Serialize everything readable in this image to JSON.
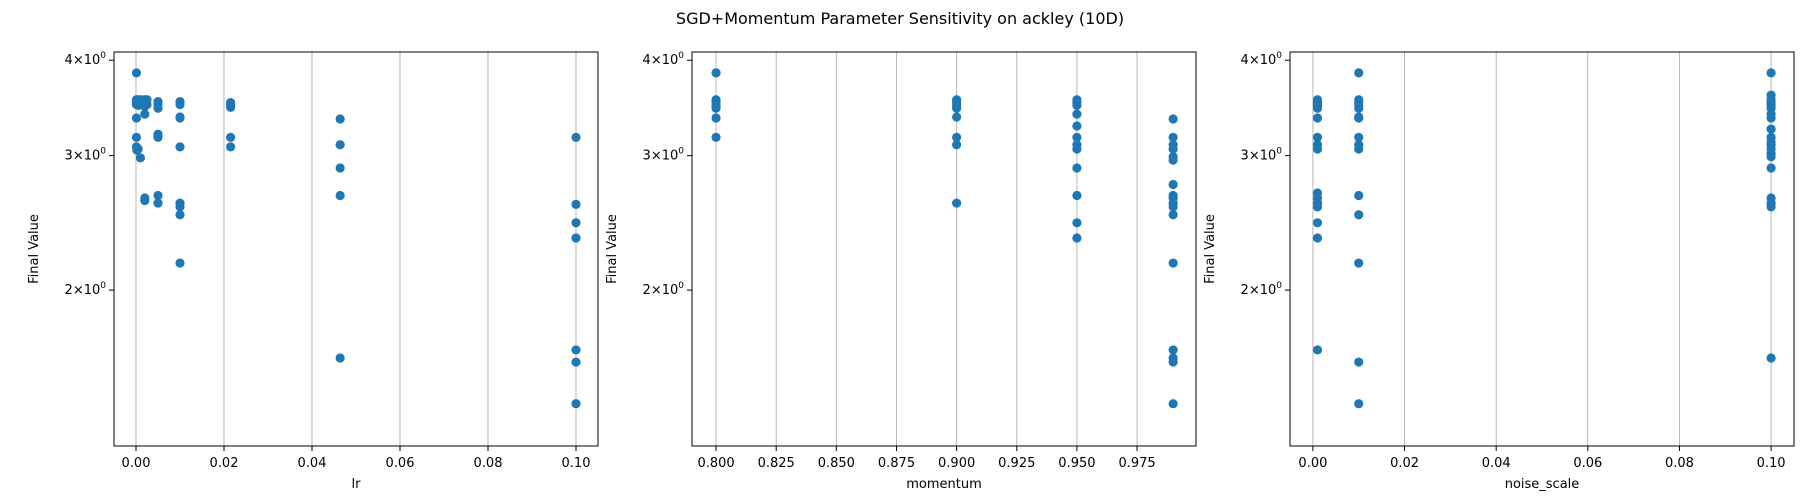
{
  "figure": {
    "title": "SGD+Momentum Parameter Sensitivity on ackley (10D)"
  },
  "chart_data": [
    {
      "type": "scatter",
      "title": "",
      "xlabel": "lr",
      "ylabel": "Final Value",
      "xlim": [
        -0.005,
        0.105
      ],
      "ylim": [
        1.25,
        4.1
      ],
      "yscale": "log",
      "grid": "x-only",
      "marker_color": "#1f77b4",
      "x_ticks": [
        {
          "value": 0.0,
          "label": "0.00"
        },
        {
          "value": 0.02,
          "label": "0.02"
        },
        {
          "value": 0.04,
          "label": "0.04"
        },
        {
          "value": 0.06,
          "label": "0.06"
        },
        {
          "value": 0.08,
          "label": "0.08"
        },
        {
          "value": 0.1,
          "label": "0.10"
        }
      ],
      "y_ticks": [
        {
          "value": 2,
          "base": "2",
          "exp": "0"
        },
        {
          "value": 3,
          "base": "3",
          "exp": "0"
        },
        {
          "value": 4,
          "base": "4",
          "exp": "0"
        }
      ],
      "points": [
        {
          "x": 0.0001,
          "y": 3.85
        },
        {
          "x": 0.0001,
          "y": 3.55
        },
        {
          "x": 0.0001,
          "y": 3.53
        },
        {
          "x": 0.0001,
          "y": 3.5
        },
        {
          "x": 0.0001,
          "y": 3.36
        },
        {
          "x": 0.0001,
          "y": 3.17
        },
        {
          "x": 0.0001,
          "y": 3.08
        },
        {
          "x": 0.0002,
          "y": 3.05
        },
        {
          "x": 0.0005,
          "y": 3.55
        },
        {
          "x": 0.0005,
          "y": 3.49
        },
        {
          "x": 0.0005,
          "y": 3.06
        },
        {
          "x": 0.001,
          "y": 3.55
        },
        {
          "x": 0.001,
          "y": 3.5
        },
        {
          "x": 0.001,
          "y": 2.98
        },
        {
          "x": 0.002,
          "y": 3.55
        },
        {
          "x": 0.002,
          "y": 3.52
        },
        {
          "x": 0.002,
          "y": 3.48
        },
        {
          "x": 0.002,
          "y": 3.4
        },
        {
          "x": 0.002,
          "y": 2.64
        },
        {
          "x": 0.002,
          "y": 2.62
        },
        {
          "x": 0.0025,
          "y": 3.55
        },
        {
          "x": 0.0025,
          "y": 3.5
        },
        {
          "x": 0.005,
          "y": 3.53
        },
        {
          "x": 0.005,
          "y": 3.5
        },
        {
          "x": 0.005,
          "y": 3.46
        },
        {
          "x": 0.005,
          "y": 3.2
        },
        {
          "x": 0.005,
          "y": 3.17
        },
        {
          "x": 0.005,
          "y": 2.66
        },
        {
          "x": 0.005,
          "y": 2.6
        },
        {
          "x": 0.01,
          "y": 3.53
        },
        {
          "x": 0.01,
          "y": 3.5
        },
        {
          "x": 0.01,
          "y": 3.37
        },
        {
          "x": 0.01,
          "y": 3.36
        },
        {
          "x": 0.01,
          "y": 3.08
        },
        {
          "x": 0.01,
          "y": 2.6
        },
        {
          "x": 0.01,
          "y": 2.57
        },
        {
          "x": 0.01,
          "y": 2.51
        },
        {
          "x": 0.01,
          "y": 2.17
        },
        {
          "x": 0.0215,
          "y": 3.52
        },
        {
          "x": 0.0215,
          "y": 3.5
        },
        {
          "x": 0.0215,
          "y": 3.47
        },
        {
          "x": 0.0215,
          "y": 3.17
        },
        {
          "x": 0.0215,
          "y": 3.08
        },
        {
          "x": 0.0464,
          "y": 3.35
        },
        {
          "x": 0.0464,
          "y": 3.1
        },
        {
          "x": 0.0464,
          "y": 2.89
        },
        {
          "x": 0.0464,
          "y": 2.66
        },
        {
          "x": 0.0464,
          "y": 1.63
        },
        {
          "x": 0.1,
          "y": 3.17
        },
        {
          "x": 0.1,
          "y": 2.59
        },
        {
          "x": 0.1,
          "y": 2.45
        },
        {
          "x": 0.1,
          "y": 2.34
        },
        {
          "x": 0.1,
          "y": 1.67
        },
        {
          "x": 0.1,
          "y": 1.61
        },
        {
          "x": 0.1,
          "y": 1.42
        }
      ]
    },
    {
      "type": "scatter",
      "title": "",
      "xlabel": "momentum",
      "ylabel": "Final Value",
      "xlim": [
        0.79,
        0.9995
      ],
      "ylim": [
        1.25,
        4.1
      ],
      "yscale": "log",
      "grid": "x-only",
      "marker_color": "#1f77b4",
      "x_ticks": [
        {
          "value": 0.8,
          "label": "0.800"
        },
        {
          "value": 0.825,
          "label": "0.825"
        },
        {
          "value": 0.85,
          "label": "0.850"
        },
        {
          "value": 0.875,
          "label": "0.875"
        },
        {
          "value": 0.9,
          "label": "0.900"
        },
        {
          "value": 0.925,
          "label": "0.925"
        },
        {
          "value": 0.95,
          "label": "0.950"
        },
        {
          "value": 0.975,
          "label": "0.975"
        }
      ],
      "y_ticks": [
        {
          "value": 2,
          "base": "2",
          "exp": "0"
        },
        {
          "value": 3,
          "base": "3",
          "exp": "0"
        },
        {
          "value": 4,
          "base": "4",
          "exp": "0"
        }
      ],
      "points": [
        {
          "x": 0.8,
          "y": 3.85
        },
        {
          "x": 0.8,
          "y": 3.55
        },
        {
          "x": 0.8,
          "y": 3.53
        },
        {
          "x": 0.8,
          "y": 3.5
        },
        {
          "x": 0.8,
          "y": 3.48
        },
        {
          "x": 0.8,
          "y": 3.46
        },
        {
          "x": 0.8,
          "y": 3.36
        },
        {
          "x": 0.8,
          "y": 3.17
        },
        {
          "x": 0.9,
          "y": 3.55
        },
        {
          "x": 0.9,
          "y": 3.52
        },
        {
          "x": 0.9,
          "y": 3.49
        },
        {
          "x": 0.9,
          "y": 3.46
        },
        {
          "x": 0.9,
          "y": 3.37
        },
        {
          "x": 0.9,
          "y": 3.17
        },
        {
          "x": 0.9,
          "y": 3.1
        },
        {
          "x": 0.9,
          "y": 2.6
        },
        {
          "x": 0.95,
          "y": 3.55
        },
        {
          "x": 0.95,
          "y": 3.52
        },
        {
          "x": 0.95,
          "y": 3.49
        },
        {
          "x": 0.95,
          "y": 3.4
        },
        {
          "x": 0.95,
          "y": 3.28
        },
        {
          "x": 0.95,
          "y": 3.17
        },
        {
          "x": 0.95,
          "y": 3.1
        },
        {
          "x": 0.95,
          "y": 3.06
        },
        {
          "x": 0.95,
          "y": 2.89
        },
        {
          "x": 0.95,
          "y": 2.66
        },
        {
          "x": 0.95,
          "y": 2.45
        },
        {
          "x": 0.95,
          "y": 2.34
        },
        {
          "x": 0.99,
          "y": 3.35
        },
        {
          "x": 0.99,
          "y": 3.17
        },
        {
          "x": 0.99,
          "y": 3.1
        },
        {
          "x": 0.99,
          "y": 3.06
        },
        {
          "x": 0.99,
          "y": 2.99
        },
        {
          "x": 0.99,
          "y": 2.96
        },
        {
          "x": 0.99,
          "y": 2.75
        },
        {
          "x": 0.99,
          "y": 2.66
        },
        {
          "x": 0.99,
          "y": 2.64
        },
        {
          "x": 0.99,
          "y": 2.6
        },
        {
          "x": 0.99,
          "y": 2.57
        },
        {
          "x": 0.99,
          "y": 2.51
        },
        {
          "x": 0.99,
          "y": 2.17
        },
        {
          "x": 0.99,
          "y": 1.67
        },
        {
          "x": 0.99,
          "y": 1.63
        },
        {
          "x": 0.99,
          "y": 1.61
        },
        {
          "x": 0.99,
          "y": 1.42
        }
      ]
    },
    {
      "type": "scatter",
      "title": "",
      "xlabel": "noise_scale",
      "ylabel": "Final Value",
      "xlim": [
        -0.005,
        0.105
      ],
      "ylim": [
        1.25,
        4.1
      ],
      "yscale": "log",
      "grid": "x-only",
      "marker_color": "#1f77b4",
      "x_ticks": [
        {
          "value": 0.0,
          "label": "0.00"
        },
        {
          "value": 0.02,
          "label": "0.02"
        },
        {
          "value": 0.04,
          "label": "0.04"
        },
        {
          "value": 0.06,
          "label": "0.06"
        },
        {
          "value": 0.08,
          "label": "0.08"
        },
        {
          "value": 0.1,
          "label": "0.10"
        }
      ],
      "y_ticks": [
        {
          "value": 2,
          "base": "2",
          "exp": "0"
        },
        {
          "value": 3,
          "base": "3",
          "exp": "0"
        },
        {
          "value": 4,
          "base": "4",
          "exp": "0"
        }
      ],
      "points": [
        {
          "x": 0.001,
          "y": 3.55
        },
        {
          "x": 0.001,
          "y": 3.52
        },
        {
          "x": 0.001,
          "y": 3.49
        },
        {
          "x": 0.001,
          "y": 3.46
        },
        {
          "x": 0.001,
          "y": 3.36
        },
        {
          "x": 0.001,
          "y": 3.17
        },
        {
          "x": 0.001,
          "y": 3.1
        },
        {
          "x": 0.001,
          "y": 3.06
        },
        {
          "x": 0.001,
          "y": 2.68
        },
        {
          "x": 0.001,
          "y": 2.64
        },
        {
          "x": 0.001,
          "y": 2.6
        },
        {
          "x": 0.001,
          "y": 2.57
        },
        {
          "x": 0.001,
          "y": 2.45
        },
        {
          "x": 0.001,
          "y": 2.34
        },
        {
          "x": 0.001,
          "y": 1.67
        },
        {
          "x": 0.01,
          "y": 3.85
        },
        {
          "x": 0.01,
          "y": 3.55
        },
        {
          "x": 0.01,
          "y": 3.52
        },
        {
          "x": 0.01,
          "y": 3.49
        },
        {
          "x": 0.01,
          "y": 3.46
        },
        {
          "x": 0.01,
          "y": 3.37
        },
        {
          "x": 0.01,
          "y": 3.36
        },
        {
          "x": 0.01,
          "y": 3.17
        },
        {
          "x": 0.01,
          "y": 3.1
        },
        {
          "x": 0.01,
          "y": 3.06
        },
        {
          "x": 0.01,
          "y": 2.66
        },
        {
          "x": 0.01,
          "y": 2.51
        },
        {
          "x": 0.01,
          "y": 2.17
        },
        {
          "x": 0.01,
          "y": 1.61
        },
        {
          "x": 0.01,
          "y": 1.42
        },
        {
          "x": 0.1,
          "y": 3.85
        },
        {
          "x": 0.1,
          "y": 3.6
        },
        {
          "x": 0.1,
          "y": 3.55
        },
        {
          "x": 0.1,
          "y": 3.52
        },
        {
          "x": 0.1,
          "y": 3.49
        },
        {
          "x": 0.1,
          "y": 3.46
        },
        {
          "x": 0.1,
          "y": 3.4
        },
        {
          "x": 0.1,
          "y": 3.36
        },
        {
          "x": 0.1,
          "y": 3.25
        },
        {
          "x": 0.1,
          "y": 3.17
        },
        {
          "x": 0.1,
          "y": 3.13
        },
        {
          "x": 0.1,
          "y": 3.1
        },
        {
          "x": 0.1,
          "y": 3.06
        },
        {
          "x": 0.1,
          "y": 3.02
        },
        {
          "x": 0.1,
          "y": 2.99
        },
        {
          "x": 0.1,
          "y": 2.89
        },
        {
          "x": 0.1,
          "y": 2.64
        },
        {
          "x": 0.1,
          "y": 2.6
        },
        {
          "x": 0.1,
          "y": 2.57
        },
        {
          "x": 0.1,
          "y": 1.63
        }
      ]
    }
  ]
}
